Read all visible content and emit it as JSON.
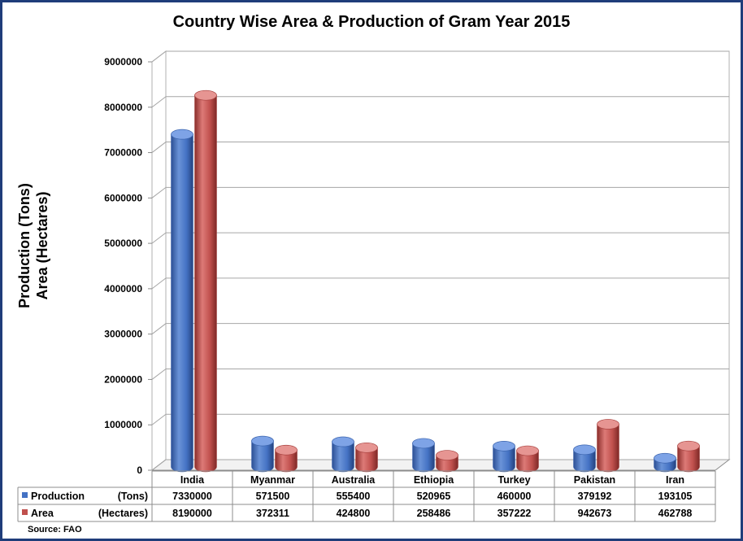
{
  "chart_data": {
    "type": "bar",
    "title": "Country Wise Area & Production of Gram Year 2015",
    "ylabel_lines": [
      "Production (Tons)",
      "Area  (Hectares)"
    ],
    "xlabel": "",
    "ylim": [
      0,
      9000000
    ],
    "yticks": [
      0,
      1000000,
      2000000,
      3000000,
      4000000,
      5000000,
      6000000,
      7000000,
      8000000,
      9000000
    ],
    "ytick_labels": [
      "0",
      "1000000",
      "2000000",
      "3000000",
      "4000000",
      "5000000",
      "6000000",
      "7000000",
      "8000000",
      "9000000"
    ],
    "grid": true,
    "legend": "data table",
    "categories": [
      "India",
      "Myanmar",
      "Australia",
      "Ethiopia",
      "Turkey",
      "Pakistan",
      "Iran"
    ],
    "series": [
      {
        "name": "Production",
        "unit": "(Tons)",
        "color": "#4472c4",
        "values": [
          7330000,
          571500,
          555400,
          520965,
          460000,
          379192,
          193105
        ]
      },
      {
        "name": "Area",
        "unit": "(Hectares)",
        "color": "#c0504d",
        "values": [
          8190000,
          372311,
          424800,
          258486,
          357222,
          942673,
          462788
        ]
      }
    ],
    "source": "Source: FAO"
  }
}
